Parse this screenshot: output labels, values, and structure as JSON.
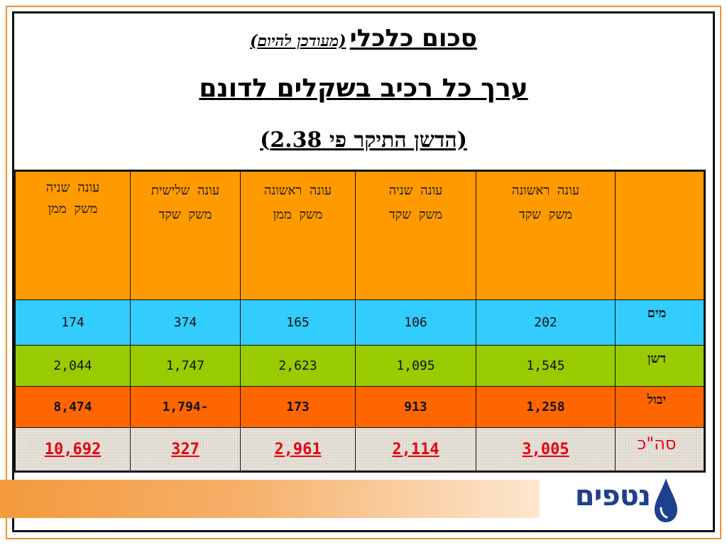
{
  "title": {
    "main": "סכום כלכלי",
    "paren": "(מעודכן להיום)",
    "line2": "ערך כל רכיב בשקלים לדונם",
    "line3": "(הדשן התיקר פי 2.38)"
  },
  "table": {
    "headers": [
      {
        "l1": "",
        "l2": ""
      },
      {
        "l1": "עונה ראשונה",
        "l2": "משק שקד"
      },
      {
        "l1": "עונה שניה",
        "l2": "משק שקד"
      },
      {
        "l1": "עונה ראשונה",
        "l2": "משק ממן"
      },
      {
        "l1": "עונה שלישית",
        "l2": "משק שקד"
      },
      {
        "l1": "עונה שניה",
        "l2": "משק ממן"
      }
    ],
    "rows": [
      {
        "label": "מים",
        "values": [
          "202",
          "106",
          "165",
          "374",
          "174"
        ]
      },
      {
        "label": "דשן",
        "values": [
          "1,545",
          "1,095",
          "2,623",
          "1,747",
          "2,044"
        ]
      },
      {
        "label": "יבול",
        "values": [
          "1,258",
          "913",
          "173",
          "-1,794",
          "8,474"
        ]
      },
      {
        "label": "סה\"כ",
        "values": [
          "3,005",
          "2,114",
          "2,961",
          "327",
          "10,692"
        ]
      }
    ]
  },
  "logo": {
    "text": "נטפים",
    "icon": "water-drop-icon"
  },
  "colors": {
    "header": "#ff9a00",
    "water": "#33ccff",
    "fertilizer": "#99cc00",
    "yield": "#ff6600",
    "total_text": "#e8000f",
    "logo": "#1f3f8f"
  }
}
